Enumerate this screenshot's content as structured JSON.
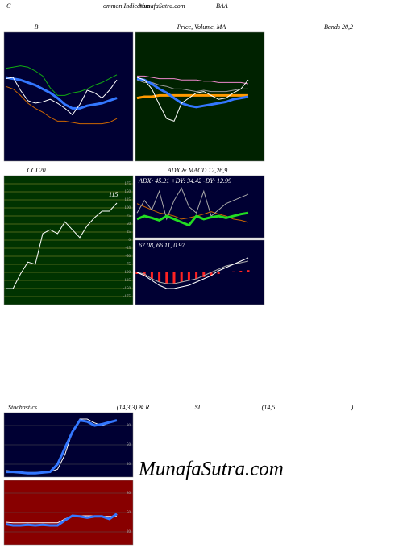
{
  "header": {
    "left": "C",
    "title_a": "ommon Indicators",
    "title_b": "MunafaSutra.com",
    "symbol": "BAA"
  },
  "watermark": "MunafaSutra.com",
  "chart_data": [
    {
      "type": "line",
      "title": "B",
      "subtitle": "Bands 20,2",
      "background": "#000033",
      "ylim": [
        0,
        100
      ],
      "series": [
        {
          "color": "#11aa11",
          "values": [
            72,
            73,
            74,
            73,
            70,
            66,
            57,
            51,
            51,
            53,
            54,
            56,
            59,
            61,
            64,
            67
          ]
        },
        {
          "color": "#3377ff",
          "thick": true,
          "values": [
            65,
            64,
            63,
            61,
            59,
            56,
            53,
            49,
            44,
            41,
            41,
            43,
            44,
            45,
            47,
            49
          ]
        },
        {
          "color": "#cc6600",
          "values": [
            58,
            56,
            51,
            45,
            41,
            38,
            34,
            31,
            31,
            30,
            29,
            29,
            29,
            29,
            30,
            33
          ]
        },
        {
          "color": "#ffffff",
          "values": [
            64,
            65,
            55,
            47,
            45,
            46,
            48,
            45,
            41,
            36,
            44,
            55,
            53,
            49,
            55,
            63
          ]
        }
      ]
    },
    {
      "type": "line",
      "title": "Price, Volume, MA",
      "background": "#002200",
      "ylim": [
        0,
        100
      ],
      "series": [
        {
          "color": "#ee88cc",
          "values": [
            66,
            66,
            65,
            64,
            64,
            64,
            63,
            63,
            63,
            62,
            62,
            61,
            61,
            61,
            61,
            60
          ]
        },
        {
          "color": "#999999",
          "values": [
            63,
            61,
            61,
            59,
            58,
            56,
            56,
            55,
            54,
            55,
            54,
            54,
            54,
            55,
            56,
            56
          ]
        },
        {
          "color": "#ff9900",
          "thick": true,
          "values": [
            49,
            50,
            50,
            51,
            51,
            51,
            51,
            51,
            51,
            51,
            51,
            51,
            51,
            51,
            51,
            51
          ]
        },
        {
          "color": "#3377ff",
          "thick": true,
          "values": [
            64,
            63,
            60,
            56,
            53,
            49,
            45,
            43,
            42,
            43,
            44,
            45,
            46,
            48,
            49,
            50
          ]
        },
        {
          "color": "#ffffff",
          "values": [
            65,
            63,
            56,
            44,
            33,
            31,
            45,
            49,
            53,
            54,
            51,
            48,
            49,
            53,
            56,
            63
          ]
        }
      ]
    },
    {
      "type": "line",
      "title": "CCI 20",
      "background": "#003300",
      "grid": true,
      "ylim": [
        -200,
        200
      ],
      "yticks": [
        175,
        150,
        125,
        100,
        75,
        50,
        25,
        0,
        -25,
        -50,
        -75,
        -100,
        -125,
        -150,
        -175
      ],
      "series": [
        {
          "color": "#ffffff",
          "values": [
            -150,
            -150,
            -105,
            -68,
            -75,
            20,
            32,
            20,
            57,
            32,
            8,
            45,
            70,
            90,
            90,
            115
          ]
        }
      ]
    },
    {
      "type": "line",
      "title": "ADX  & MACD 12,26,9",
      "label": "ADX: 45.21 +DY: 34.42 -DY: 12.99",
      "background": "#000033",
      "ylim": [
        0,
        100
      ],
      "series": [
        {
          "color": "#cc6600",
          "values": [
            55,
            50,
            45,
            40,
            38,
            35,
            30,
            32,
            35,
            38,
            42,
            38,
            35,
            30,
            28,
            25
          ]
        },
        {
          "color": "#aaaaaa",
          "values": [
            40,
            60,
            45,
            75,
            30,
            60,
            80,
            50,
            40,
            75,
            35,
            45,
            55,
            60,
            65,
            70
          ]
        },
        {
          "color": "#22dd22",
          "thick": true,
          "values": [
            30,
            35,
            32,
            28,
            35,
            30,
            25,
            20,
            35,
            30,
            33,
            35,
            32,
            35,
            38,
            40
          ]
        }
      ]
    },
    {
      "type": "line",
      "label": "67.08, 66.11, 0.97",
      "background": "#000033",
      "ylim": [
        -10,
        10
      ],
      "series": [
        {
          "color": "#ff2222",
          "kind": "bar",
          "values": [
            -0.5,
            -1,
            -2,
            -3,
            -3.5,
            -3.5,
            -3,
            -2.5,
            -2,
            -1.5,
            -1,
            -0.5,
            0,
            0.3,
            0.5,
            0.7
          ]
        },
        {
          "color": "#aaaaaa",
          "values": [
            0,
            -0.5,
            -2,
            -3,
            -3.5,
            -3.5,
            -3,
            -2.5,
            -2,
            -1,
            0,
            1,
            2,
            2.5,
            3,
            3.5
          ]
        },
        {
          "color": "#ffffff",
          "values": [
            0,
            -1,
            -2.5,
            -4,
            -5,
            -5,
            -4.5,
            -4,
            -3,
            -2,
            -1,
            0.5,
            1.5,
            2.5,
            3.5,
            4.5
          ]
        }
      ]
    },
    {
      "type": "line",
      "title_parts": [
        "Stochastics",
        "(14,3,3) & R",
        "SI",
        "(14,5",
        ")"
      ],
      "background": "#000033",
      "ylim": [
        0,
        100
      ],
      "yticks": [
        20,
        50,
        80
      ],
      "series": [
        {
          "color": "#ffffff",
          "values": [
            10,
            9,
            8,
            7,
            7,
            7,
            8,
            12,
            35,
            70,
            90,
            90,
            84,
            80,
            84,
            87
          ]
        },
        {
          "color": "#3377ff",
          "thick": true,
          "values": [
            8,
            8,
            7,
            6,
            6,
            7,
            8,
            20,
            45,
            70,
            88,
            86,
            80,
            82,
            85,
            88
          ]
        }
      ]
    },
    {
      "type": "line",
      "background": "#880000",
      "ylim": [
        0,
        100
      ],
      "yticks": [
        20,
        50,
        80
      ],
      "series": [
        {
          "color": "#ffffff",
          "values": [
            35,
            34,
            34,
            34,
            34,
            34,
            34,
            34,
            40,
            45,
            45,
            45,
            45,
            44,
            44,
            44
          ]
        },
        {
          "color": "#3377ff",
          "thick": true,
          "values": [
            32,
            30,
            30,
            31,
            30,
            31,
            30,
            30,
            38,
            45,
            44,
            42,
            44,
            44,
            40,
            48
          ]
        }
      ]
    }
  ]
}
